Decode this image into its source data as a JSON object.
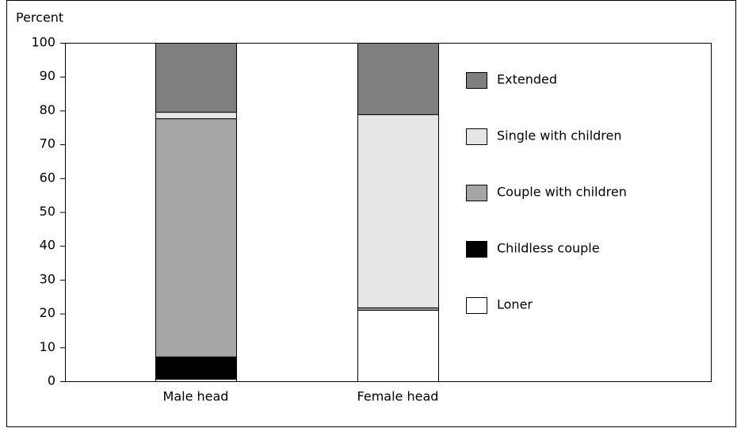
{
  "chart_data": {
    "type": "stacked_bar",
    "y_label": "Percent",
    "categories": [
      "Male head",
      "Female head"
    ],
    "series": [
      {
        "name": "Loner",
        "color": "#ffffff",
        "values": [
          0.7,
          21.1
        ]
      },
      {
        "name": "Childless couple",
        "color": "#000000",
        "values": [
          6.6,
          0
        ]
      },
      {
        "name": "Couple with children",
        "color": "#a6a6a6",
        "values": [
          70.4,
          0.7
        ]
      },
      {
        "name": "Single with children",
        "color": "#e6e6e6",
        "values": [
          1.9,
          57.1
        ]
      },
      {
        "name": "Extended",
        "color": "#7f7f7f",
        "values": [
          20.4,
          21.1
        ]
      }
    ],
    "ylim": [
      0,
      100
    ],
    "yticks": [
      0,
      10,
      20,
      30,
      40,
      50,
      60,
      70,
      80,
      90,
      100
    ],
    "legend": "right"
  }
}
